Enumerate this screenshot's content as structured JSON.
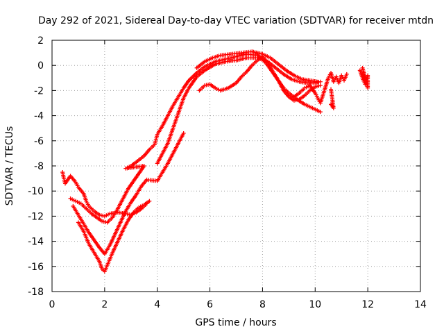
{
  "chart_data": {
    "type": "scatter",
    "title": "Day 292 of 2021, Sidereal Day-to-day VTEC variation (SDTVAR) for receiver mtdn",
    "xlabel": "GPS time / hours",
    "ylabel": "SDTVAR / TECUs",
    "xlim": [
      0,
      14
    ],
    "ylim": [
      -18,
      2
    ],
    "xticks": [
      0,
      2,
      4,
      6,
      8,
      10,
      12,
      14
    ],
    "yticks": [
      2,
      0,
      -2,
      -4,
      -6,
      -8,
      -10,
      -12,
      -14,
      -16,
      -18
    ],
    "grid": true,
    "marker": "+",
    "marker_color": "#ff0000",
    "series": [
      {
        "points": [
          [
            0.4,
            -8.5
          ],
          [
            0.45,
            -9.0
          ],
          [
            0.5,
            -9.4
          ],
          [
            0.7,
            -8.8
          ],
          [
            0.9,
            -9.3
          ],
          [
            1.0,
            -9.7
          ],
          [
            1.2,
            -10.2
          ],
          [
            1.3,
            -10.8
          ],
          [
            1.4,
            -11.2
          ],
          [
            1.6,
            -11.6
          ],
          [
            1.8,
            -11.9
          ],
          [
            2.0,
            -12.0
          ],
          [
            2.2,
            -11.8
          ],
          [
            2.5,
            -11.7
          ],
          [
            2.8,
            -11.8
          ],
          [
            3.0,
            -11.9
          ],
          [
            3.2,
            -11.7
          ],
          [
            3.4,
            -11.4
          ],
          [
            3.6,
            -11.0
          ]
        ]
      },
      {
        "points": [
          [
            0.7,
            -10.6
          ],
          [
            0.9,
            -10.8
          ],
          [
            1.1,
            -11.0
          ],
          [
            1.3,
            -11.4
          ],
          [
            1.5,
            -11.8
          ],
          [
            1.7,
            -12.1
          ],
          [
            1.9,
            -12.4
          ],
          [
            2.1,
            -12.5
          ],
          [
            2.3,
            -12.1
          ],
          [
            2.5,
            -11.4
          ],
          [
            2.7,
            -10.6
          ],
          [
            2.9,
            -9.8
          ],
          [
            3.1,
            -9.2
          ],
          [
            3.3,
            -8.6
          ],
          [
            3.5,
            -8.0
          ],
          [
            2.8,
            -8.2
          ],
          [
            3.0,
            -8.0
          ],
          [
            3.2,
            -7.7
          ],
          [
            3.5,
            -7.2
          ],
          [
            3.7,
            -6.7
          ],
          [
            3.9,
            -6.3
          ],
          [
            4.0,
            -5.5
          ],
          [
            4.2,
            -4.8
          ],
          [
            4.4,
            -4.0
          ],
          [
            4.6,
            -3.2
          ],
          [
            4.8,
            -2.5
          ],
          [
            5.0,
            -1.8
          ],
          [
            5.2,
            -1.2
          ],
          [
            5.5,
            -0.6
          ],
          [
            5.8,
            -0.1
          ],
          [
            6.2,
            0.3
          ],
          [
            6.6,
            0.5
          ],
          [
            7.0,
            0.7
          ],
          [
            7.4,
            0.9
          ],
          [
            7.8,
            0.8
          ],
          [
            8.0,
            0.5
          ],
          [
            8.2,
            0.0
          ],
          [
            8.4,
            -0.6
          ],
          [
            8.6,
            -1.2
          ],
          [
            8.8,
            -1.8
          ],
          [
            9.0,
            -2.2
          ],
          [
            9.3,
            -2.7
          ],
          [
            9.6,
            -3.1
          ],
          [
            9.9,
            -3.4
          ],
          [
            10.2,
            -3.7
          ]
        ]
      },
      {
        "points": [
          [
            0.8,
            -11.2
          ],
          [
            1.0,
            -11.9
          ],
          [
            1.2,
            -12.6
          ],
          [
            1.4,
            -13.3
          ],
          [
            1.6,
            -13.9
          ],
          [
            1.8,
            -14.5
          ],
          [
            2.0,
            -15.0
          ],
          [
            2.2,
            -14.3
          ],
          [
            2.4,
            -13.4
          ],
          [
            2.6,
            -12.5
          ],
          [
            2.8,
            -11.6
          ],
          [
            3.0,
            -10.9
          ],
          [
            3.2,
            -10.3
          ],
          [
            3.4,
            -9.6
          ],
          [
            3.6,
            -9.1
          ],
          [
            4.0,
            -9.2
          ],
          [
            4.2,
            -8.5
          ],
          [
            4.4,
            -7.8
          ],
          [
            4.6,
            -7.0
          ],
          [
            4.8,
            -6.2
          ],
          [
            5.0,
            -5.4
          ],
          [
            4.0,
            -7.8
          ],
          [
            4.2,
            -7.0
          ],
          [
            4.4,
            -6.2
          ],
          [
            4.6,
            -5.0
          ],
          [
            4.8,
            -3.8
          ],
          [
            5.0,
            -2.6
          ],
          [
            5.2,
            -1.8
          ],
          [
            5.5,
            -0.9
          ],
          [
            5.8,
            -0.4
          ],
          [
            6.2,
            0.1
          ],
          [
            6.6,
            0.3
          ],
          [
            7.0,
            0.4
          ],
          [
            7.4,
            0.6
          ],
          [
            7.8,
            0.6
          ],
          [
            8.2,
            0.3
          ],
          [
            8.5,
            -0.2
          ],
          [
            8.8,
            -0.7
          ],
          [
            9.1,
            -1.1
          ],
          [
            9.4,
            -1.3
          ],
          [
            9.7,
            -1.4
          ],
          [
            10.0,
            -1.4
          ],
          [
            10.2,
            -1.3
          ]
        ]
      },
      {
        "points": [
          [
            1.0,
            -12.5
          ],
          [
            1.2,
            -13.2
          ],
          [
            1.4,
            -14.2
          ],
          [
            1.6,
            -14.9
          ],
          [
            1.8,
            -15.6
          ],
          [
            1.9,
            -16.2
          ],
          [
            2.0,
            -16.4
          ],
          [
            2.1,
            -15.9
          ],
          [
            2.3,
            -14.9
          ],
          [
            2.5,
            -14.0
          ],
          [
            2.7,
            -13.1
          ],
          [
            2.9,
            -12.3
          ],
          [
            3.1,
            -11.7
          ],
          [
            3.3,
            -11.3
          ],
          [
            3.5,
            -11.1
          ],
          [
            3.7,
            -10.8
          ],
          [
            5.5,
            -0.2
          ],
          [
            5.8,
            0.3
          ],
          [
            6.1,
            0.6
          ],
          [
            6.4,
            0.8
          ],
          [
            6.8,
            0.9
          ],
          [
            7.2,
            1.0
          ],
          [
            7.6,
            1.1
          ],
          [
            8.0,
            0.9
          ],
          [
            8.3,
            0.6
          ],
          [
            8.6,
            0.1
          ],
          [
            8.9,
            -0.4
          ],
          [
            9.2,
            -0.8
          ],
          [
            9.5,
            -1.1
          ],
          [
            9.8,
            -1.2
          ],
          [
            10.1,
            -1.3
          ]
        ]
      },
      {
        "points": [
          [
            5.6,
            -2.0
          ],
          [
            5.8,
            -1.6
          ],
          [
            6.0,
            -1.5
          ],
          [
            6.2,
            -1.8
          ],
          [
            6.4,
            -2.0
          ],
          [
            6.7,
            -1.8
          ],
          [
            7.0,
            -1.4
          ],
          [
            7.2,
            -0.9
          ],
          [
            7.4,
            -0.5
          ],
          [
            7.6,
            0.0
          ],
          [
            7.8,
            0.4
          ],
          [
            8.0,
            0.7
          ],
          [
            8.2,
            0.2
          ],
          [
            8.4,
            -0.5
          ],
          [
            8.6,
            -1.2
          ],
          [
            8.8,
            -2.0
          ],
          [
            9.0,
            -2.5
          ],
          [
            9.2,
            -2.8
          ],
          [
            9.4,
            -2.7
          ],
          [
            9.6,
            -2.4
          ],
          [
            9.8,
            -2.0
          ],
          [
            10.0,
            -1.7
          ],
          [
            10.2,
            -1.6
          ]
        ]
      },
      {
        "points": [
          [
            9.2,
            -2.5
          ],
          [
            9.4,
            -2.2
          ],
          [
            9.6,
            -1.8
          ],
          [
            9.8,
            -1.6
          ],
          [
            10.0,
            -2.2
          ],
          [
            10.1,
            -2.6
          ],
          [
            10.2,
            -3.0
          ],
          [
            10.5,
            -1.0
          ],
          [
            10.6,
            -0.6
          ],
          [
            10.7,
            -1.3
          ],
          [
            10.8,
            -0.9
          ],
          [
            10.9,
            -1.4
          ],
          [
            11.0,
            -0.8
          ],
          [
            11.1,
            -1.2
          ],
          [
            11.2,
            -0.7
          ],
          [
            10.6,
            -3.1
          ],
          [
            10.7,
            -3.4
          ],
          [
            10.6,
            -1.9
          ],
          [
            11.7,
            -0.4
          ],
          [
            11.8,
            -1.0
          ],
          [
            11.9,
            -1.5
          ],
          [
            12.0,
            -0.8
          ],
          [
            12.0,
            -1.8
          ],
          [
            11.8,
            -0.2
          ],
          [
            11.9,
            -1.1
          ]
        ]
      }
    ]
  }
}
